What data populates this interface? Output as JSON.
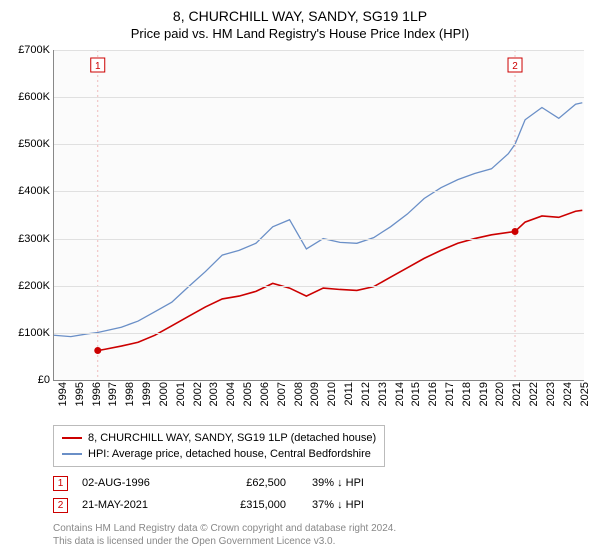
{
  "title": "8, CHURCHILL WAY, SANDY, SG19 1LP",
  "subtitle": "Price paid vs. HM Land Registry's House Price Index (HPI)",
  "chart": {
    "type": "line",
    "background_color": "#fbfbfb",
    "grid_color": "#e0e0e0",
    "axis_color": "#888888",
    "x_years": [
      1994,
      1995,
      1996,
      1997,
      1998,
      1999,
      2000,
      2001,
      2002,
      2003,
      2004,
      2005,
      2006,
      2007,
      2008,
      2009,
      2010,
      2011,
      2012,
      2013,
      2014,
      2015,
      2016,
      2017,
      2018,
      2019,
      2020,
      2021,
      2022,
      2023,
      2024,
      2025
    ],
    "xlim": [
      1994,
      2025.5
    ],
    "ylim": [
      0,
      700000
    ],
    "ytick_step": 100000,
    "yticks": [
      "£0",
      "£100K",
      "£200K",
      "£300K",
      "£400K",
      "£500K",
      "£600K",
      "£700K"
    ],
    "xtick_label_rotation": -90,
    "label_fontsize": 11,
    "series": [
      {
        "name": "8, CHURCHILL WAY, SANDY, SG19 1LP (detached house)",
        "color": "#cc0000",
        "line_width": 1.6,
        "points": [
          [
            1996.6,
            62500
          ],
          [
            1997,
            65000
          ],
          [
            1998,
            72000
          ],
          [
            1999,
            80000
          ],
          [
            2000,
            95000
          ],
          [
            2001,
            115000
          ],
          [
            2002,
            135000
          ],
          [
            2003,
            155000
          ],
          [
            2004,
            172000
          ],
          [
            2005,
            178000
          ],
          [
            2006,
            188000
          ],
          [
            2007,
            205000
          ],
          [
            2008,
            195000
          ],
          [
            2009,
            178000
          ],
          [
            2010,
            195000
          ],
          [
            2011,
            192000
          ],
          [
            2012,
            190000
          ],
          [
            2013,
            198000
          ],
          [
            2014,
            218000
          ],
          [
            2015,
            238000
          ],
          [
            2016,
            258000
          ],
          [
            2017,
            275000
          ],
          [
            2018,
            290000
          ],
          [
            2019,
            300000
          ],
          [
            2020,
            308000
          ],
          [
            2021.4,
            315000
          ],
          [
            2022,
            335000
          ],
          [
            2023,
            348000
          ],
          [
            2024,
            345000
          ],
          [
            2025,
            358000
          ],
          [
            2025.4,
            360000
          ]
        ]
      },
      {
        "name": "HPI: Average price, detached house, Central Bedfordshire",
        "color": "#6a8fc7",
        "line_width": 1.3,
        "points": [
          [
            1994,
            95000
          ],
          [
            1995,
            92000
          ],
          [
            1996,
            98000
          ],
          [
            1996.6,
            100800
          ],
          [
            1997,
            104000
          ],
          [
            1998,
            112000
          ],
          [
            1999,
            125000
          ],
          [
            2000,
            145000
          ],
          [
            2001,
            165000
          ],
          [
            2002,
            198000
          ],
          [
            2003,
            230000
          ],
          [
            2004,
            265000
          ],
          [
            2005,
            275000
          ],
          [
            2006,
            290000
          ],
          [
            2007,
            325000
          ],
          [
            2008,
            340000
          ],
          [
            2009,
            278000
          ],
          [
            2010,
            300000
          ],
          [
            2011,
            292000
          ],
          [
            2012,
            290000
          ],
          [
            2013,
            302000
          ],
          [
            2014,
            325000
          ],
          [
            2015,
            352000
          ],
          [
            2016,
            385000
          ],
          [
            2017,
            408000
          ],
          [
            2018,
            425000
          ],
          [
            2019,
            438000
          ],
          [
            2020,
            448000
          ],
          [
            2021,
            480000
          ],
          [
            2021.4,
            500000
          ],
          [
            2022,
            552000
          ],
          [
            2023,
            578000
          ],
          [
            2024,
            555000
          ],
          [
            2025,
            585000
          ],
          [
            2025.4,
            588000
          ]
        ]
      }
    ],
    "event_markers": [
      {
        "id": "1",
        "x": 1996.6,
        "y": 62500,
        "color": "#cc0000",
        "vline_color": "#eebbbb"
      },
      {
        "id": "2",
        "x": 2021.4,
        "y": 315000,
        "color": "#cc0000",
        "vline_color": "#eebbbb"
      }
    ]
  },
  "legend": {
    "items": [
      {
        "label": "8, CHURCHILL WAY, SANDY, SG19 1LP (detached house)",
        "color": "#cc0000"
      },
      {
        "label": "HPI: Average price, detached house, Central Bedfordshire",
        "color": "#6a8fc7"
      }
    ]
  },
  "events": [
    {
      "id": "1",
      "date": "02-AUG-1996",
      "price": "£62,500",
      "diff": "39% ↓ HPI"
    },
    {
      "id": "2",
      "date": "21-MAY-2021",
      "price": "£315,000",
      "diff": "37% ↓ HPI"
    }
  ],
  "attribution": {
    "line1": "Contains HM Land Registry data © Crown copyright and database right 2024.",
    "line2": "This data is licensed under the Open Government Licence v3.0."
  }
}
